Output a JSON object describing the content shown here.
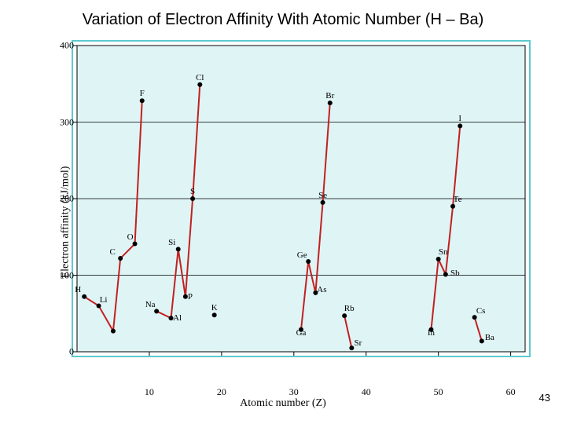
{
  "title": "Variation of Electron Affinity With Atomic Number (H – Ba)",
  "page_number": "43",
  "chart": {
    "type": "line",
    "xlabel": "Atomic number (Z)",
    "ylabel": "Electron affinity (kJ/mol)",
    "xlim": [
      0,
      62
    ],
    "ylim": [
      0,
      400
    ],
    "xtick_step": 10,
    "ytick_step": 100,
    "xticks": [
      10,
      20,
      30,
      40,
      50,
      60
    ],
    "yticks": [
      0,
      100,
      200,
      300,
      400
    ],
    "background_color": "#dff4f5",
    "outer_border_color": "#5dc9cf",
    "grid_color": "#000000",
    "line_color": "#c22020",
    "line_width": 2,
    "marker_color": "#000000",
    "marker_radius": 3,
    "title_fontsize": 20,
    "label_fontsize": 14,
    "tick_fontsize": 12,
    "point_label_fontsize": 11,
    "segments": [
      {
        "points": [
          {
            "z": 1,
            "ea": 72,
            "label": "H"
          },
          {
            "z": 3,
            "ea": 60,
            "label": "Li"
          },
          {
            "z": 5,
            "ea": 27,
            "label": ""
          },
          {
            "z": 6,
            "ea": 122,
            "label": "C"
          },
          {
            "z": 8,
            "ea": 141,
            "label": "O"
          },
          {
            "z": 9,
            "ea": 328,
            "label": "F"
          }
        ]
      },
      {
        "points": [
          {
            "z": 11,
            "ea": 53,
            "label": "Na"
          },
          {
            "z": 13,
            "ea": 44,
            "label": "Al"
          },
          {
            "z": 14,
            "ea": 134,
            "label": "Si"
          },
          {
            "z": 15,
            "ea": 72,
            "label": "P"
          },
          {
            "z": 16,
            "ea": 200,
            "label": "S"
          },
          {
            "z": 17,
            "ea": 349,
            "label": "Cl"
          }
        ]
      },
      {
        "points": [
          {
            "z": 19,
            "ea": 48,
            "label": "K"
          }
        ]
      },
      {
        "points": [
          {
            "z": 31,
            "ea": 29,
            "label": "Ga"
          },
          {
            "z": 32,
            "ea": 118,
            "label": "Ge"
          },
          {
            "z": 33,
            "ea": 77,
            "label": "As"
          },
          {
            "z": 34,
            "ea": 195,
            "label": "Se"
          },
          {
            "z": 35,
            "ea": 325,
            "label": "Br"
          }
        ]
      },
      {
        "points": [
          {
            "z": 37,
            "ea": 47,
            "label": "Rb"
          },
          {
            "z": 38,
            "ea": 5,
            "label": "Sr"
          }
        ]
      },
      {
        "points": [
          {
            "z": 49,
            "ea": 29,
            "label": "In"
          },
          {
            "z": 50,
            "ea": 121,
            "label": "Sn"
          },
          {
            "z": 51,
            "ea": 101,
            "label": "Sb"
          },
          {
            "z": 52,
            "ea": 190,
            "label": "Te"
          },
          {
            "z": 53,
            "ea": 295,
            "label": "I"
          }
        ]
      },
      {
        "points": [
          {
            "z": 55,
            "ea": 45,
            "label": "Cs"
          },
          {
            "z": 56,
            "ea": 14,
            "label": "Ba"
          }
        ]
      }
    ]
  }
}
